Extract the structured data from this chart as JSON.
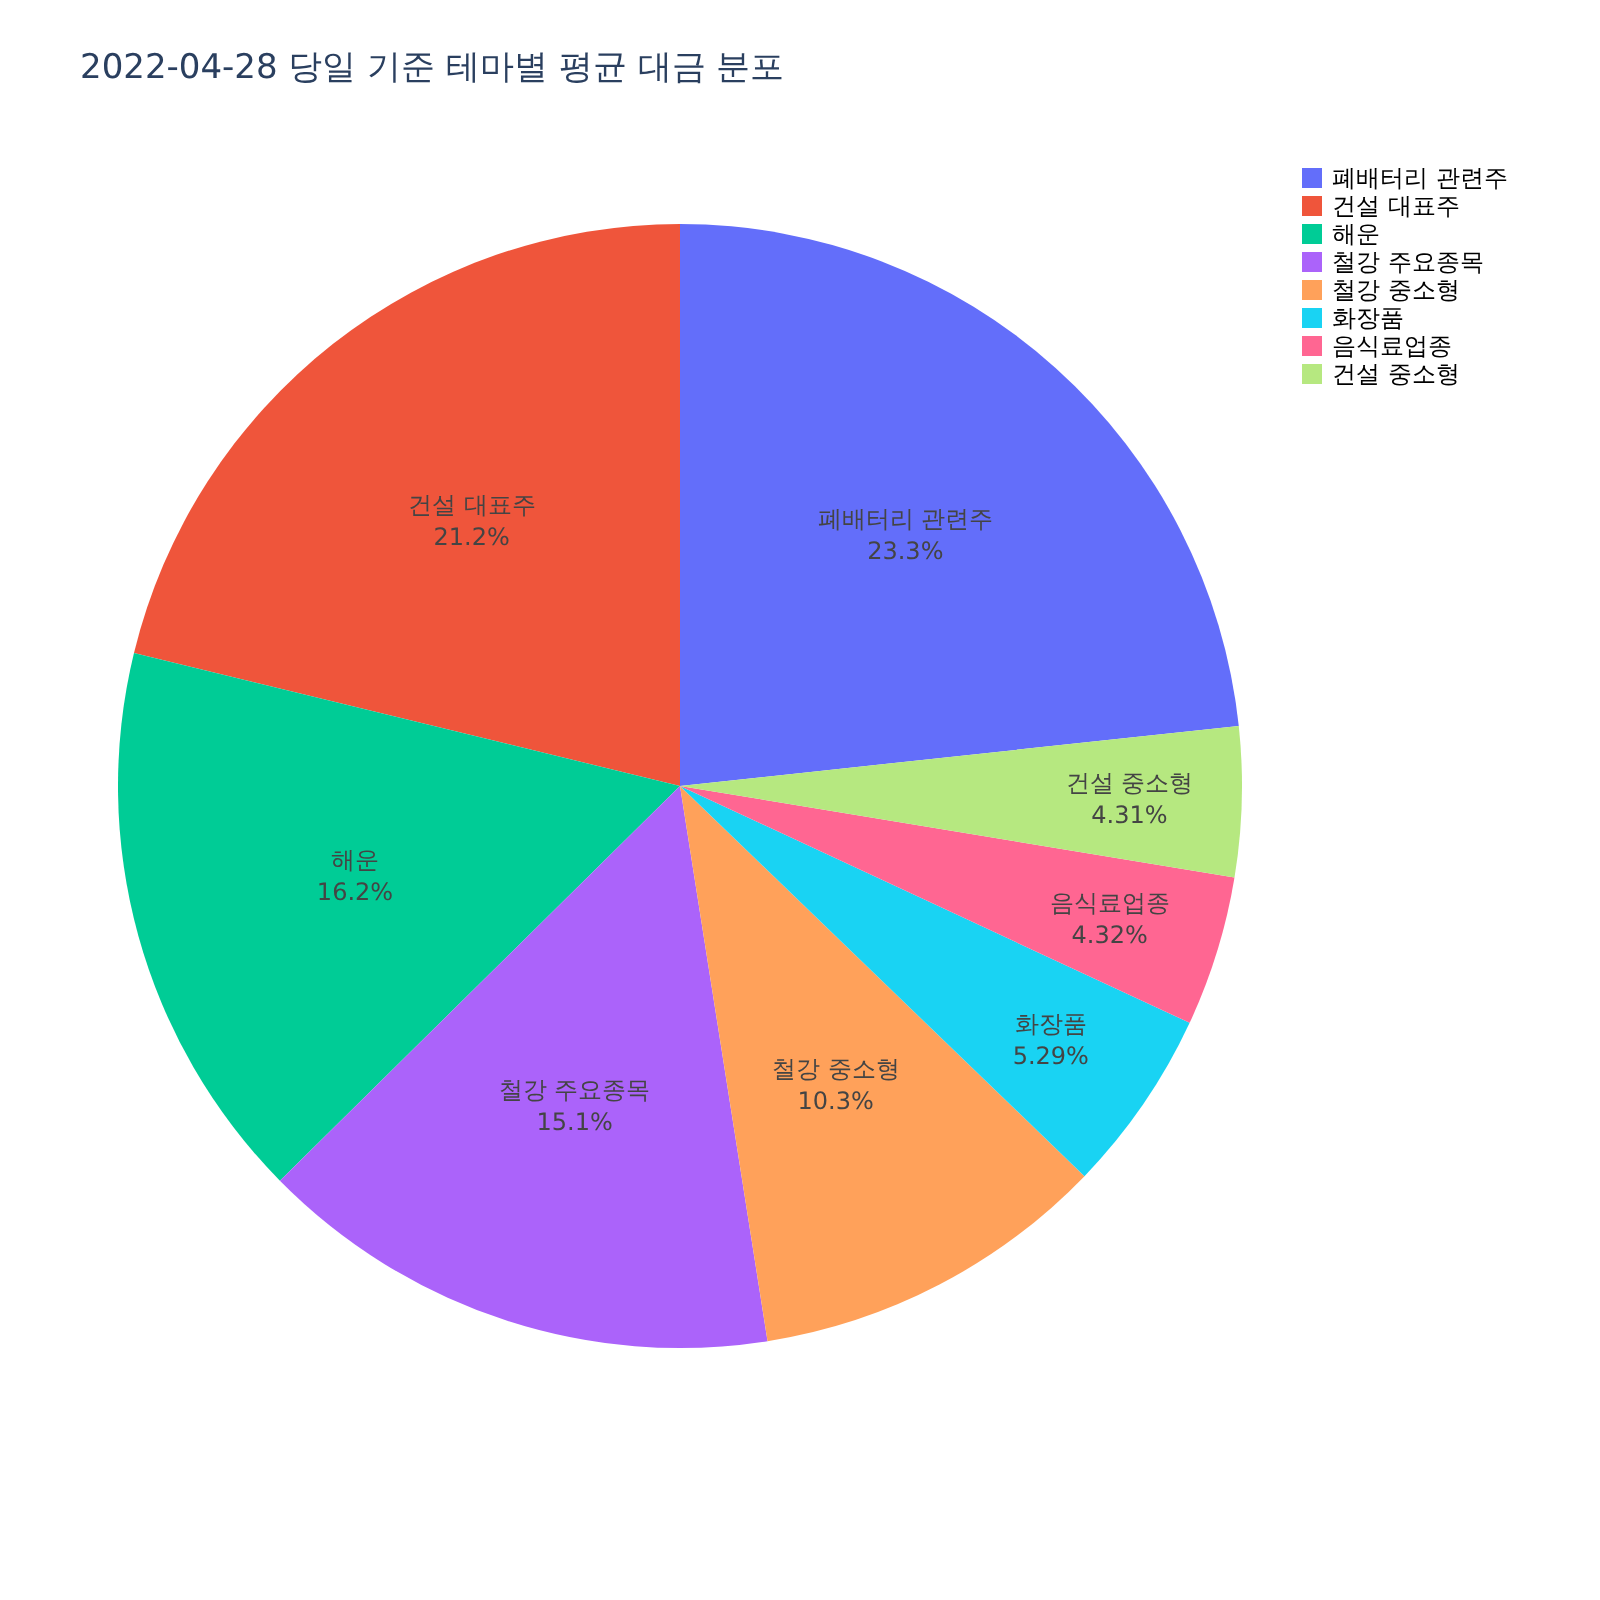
{
  "chart_data": {
    "type": "pie",
    "title": "2022-04-28 당일 기준 테마별 평균 대금 분포",
    "categories": [
      "폐배터리 관련주",
      "건설 대표주",
      "해운",
      "철강 주요종목",
      "철강 중소형",
      "화장품",
      "음식료업종",
      "건설 중소형"
    ],
    "values": [
      23.3,
      21.2,
      16.2,
      15.1,
      10.3,
      5.29,
      4.32,
      4.31
    ],
    "value_labels": [
      "23.3%",
      "21.2%",
      "16.2%",
      "15.1%",
      "10.3%",
      "5.29%",
      "4.32%",
      "4.31%"
    ],
    "colors": [
      "#636efa",
      "#ef553b",
      "#00cc96",
      "#ab63fa",
      "#ffa15a",
      "#19d3f3",
      "#ff6692",
      "#b6e880"
    ],
    "legend": "top right"
  }
}
